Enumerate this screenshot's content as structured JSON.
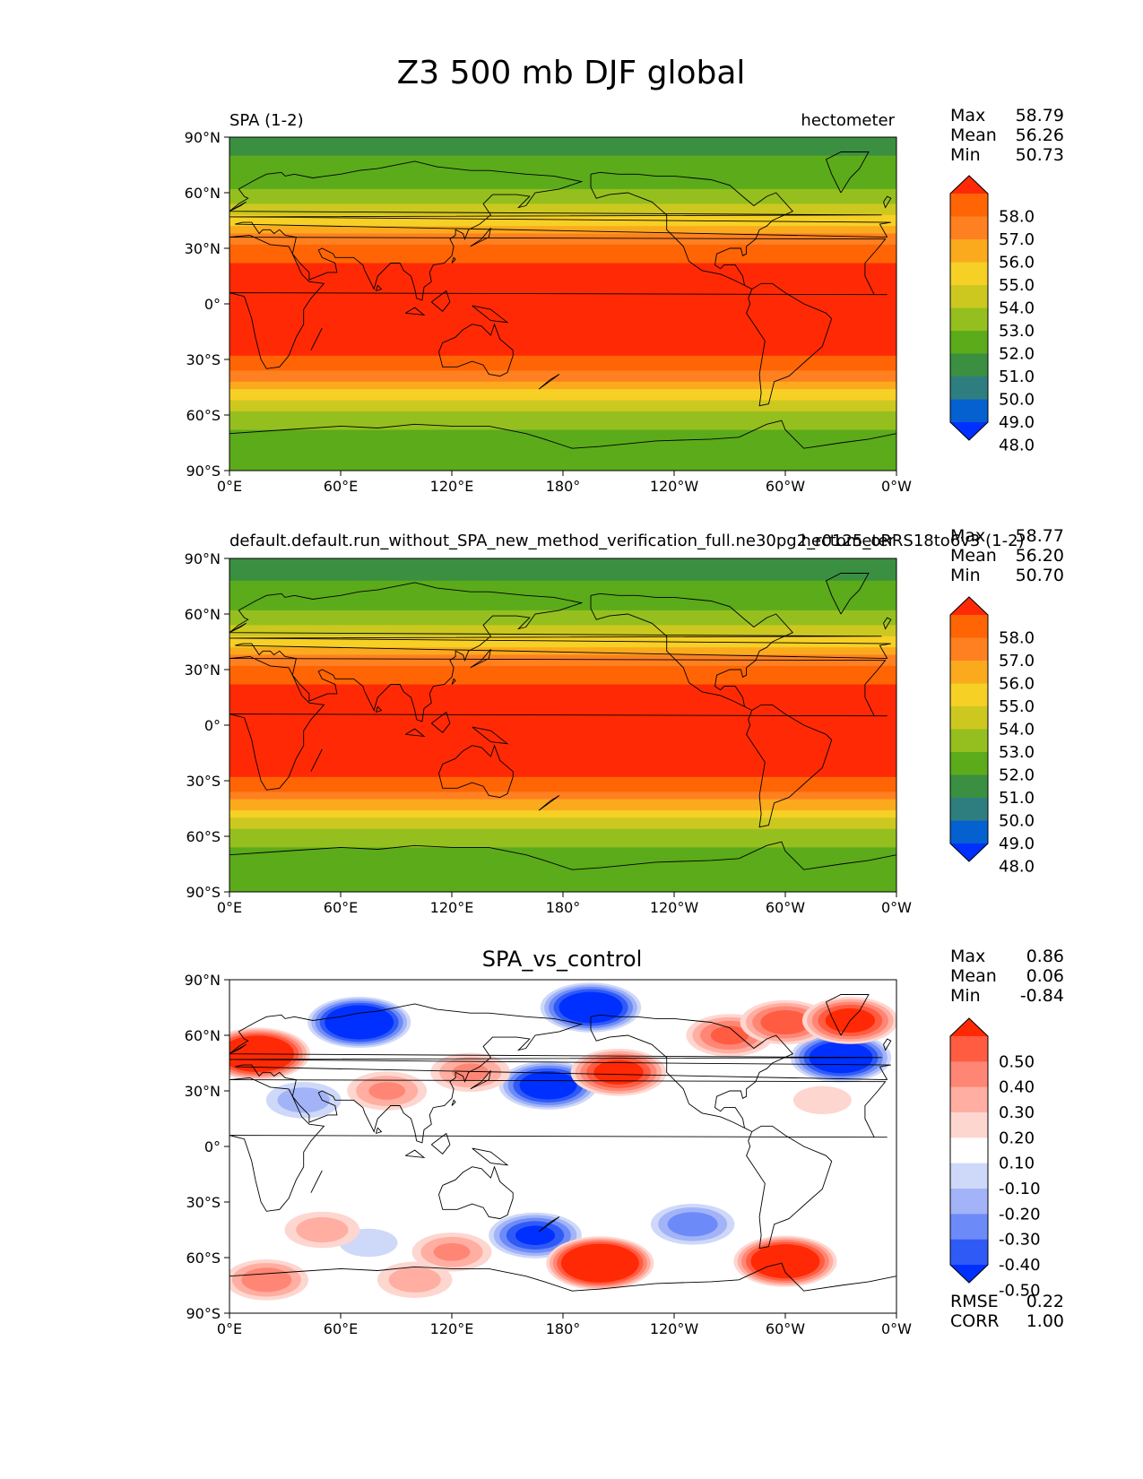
{
  "figure": {
    "title": "Z3 500 mb DJF global"
  },
  "x_ticks": [
    "0°E",
    "60°E",
    "120°E",
    "180°",
    "120°W",
    "60°W",
    "0°W"
  ],
  "y_ticks": [
    "90°N",
    "60°N",
    "30°N",
    "0°",
    "30°S",
    "60°S",
    "90°S"
  ],
  "colors": {
    "field": [
      "#0030ff",
      "#0560d0",
      "#2e7e80",
      "#3a9040",
      "#5bab1a",
      "#95bf1e",
      "#ccc820",
      "#f6d025",
      "#fbaa1d",
      "#ff8020",
      "#ff6505",
      "#ff2a05"
    ],
    "diff": [
      "#0030ff",
      "#2f5af6",
      "#6d8bf8",
      "#a2b3f8",
      "#ced8f9",
      "#ffffff",
      "#fed6d0",
      "#ffaea1",
      "#ff8674",
      "#ff5c42",
      "#ff2a05"
    ]
  },
  "chart_data": [
    {
      "type": "heatmap",
      "title_left": "SPA (1-2)",
      "title_right": "hectometer",
      "units": "hectometer",
      "xlim": [
        0,
        360
      ],
      "ylim": [
        -90,
        90
      ],
      "stats": {
        "labels": [
          "Max",
          "Mean",
          "Min"
        ],
        "values": [
          "58.79",
          "56.26",
          "50.73"
        ]
      },
      "colorbar": {
        "levels": [
          "58.0",
          "57.0",
          "56.0",
          "55.0",
          "54.0",
          "53.0",
          "52.0",
          "51.0",
          "50.0",
          "49.0",
          "48.0"
        ],
        "extend": "both"
      },
      "zonal_profile": {
        "lat": [
          -90,
          -80,
          -70,
          -60,
          -50,
          -40,
          -30,
          -20,
          -10,
          0,
          10,
          20,
          30,
          40,
          50,
          60,
          70,
          80,
          90
        ],
        "value": [
          51.4,
          51.5,
          51.7,
          52.7,
          54.2,
          56.3,
          57.8,
          58.5,
          58.7,
          58.7,
          58.6,
          58.3,
          57.2,
          55.5,
          53.7,
          52.2,
          51.4,
          51.0,
          50.9
        ]
      }
    },
    {
      "type": "heatmap",
      "title_left": "default.default.run_without_SPA_new_method_verification_full.ne30pg2_r0125_oRRS18to6v3 (1-2)",
      "title_right": "hectometer",
      "units": "hectometer",
      "xlim": [
        0,
        360
      ],
      "ylim": [
        -90,
        90
      ],
      "stats": {
        "labels": [
          "Max",
          "Mean",
          "Min"
        ],
        "values": [
          "58.77",
          "56.20",
          "50.70"
        ]
      },
      "colorbar": {
        "levels": [
          "58.0",
          "57.0",
          "56.0",
          "55.0",
          "54.0",
          "53.0",
          "52.0",
          "51.0",
          "50.0",
          "49.0",
          "48.0"
        ],
        "extend": "both"
      },
      "zonal_profile": {
        "lat": [
          -90,
          -80,
          -70,
          -60,
          -50,
          -40,
          -30,
          -20,
          -10,
          0,
          10,
          20,
          30,
          40,
          50,
          60,
          70,
          80,
          90
        ],
        "value": [
          51.3,
          51.4,
          51.6,
          52.4,
          54.0,
          56.2,
          57.8,
          58.5,
          58.7,
          58.7,
          58.6,
          58.3,
          57.2,
          55.5,
          53.7,
          52.1,
          51.3,
          50.9,
          50.8
        ]
      }
    },
    {
      "type": "heatmap",
      "title": "SPA_vs_control",
      "xlim": [
        0,
        360
      ],
      "ylim": [
        -90,
        90
      ],
      "stats": {
        "labels": [
          "Max",
          "Mean",
          "Min"
        ],
        "values": [
          "0.86",
          "0.06",
          "-0.84"
        ]
      },
      "colorbar": {
        "levels": [
          "0.50",
          "0.40",
          "0.30",
          "0.20",
          "0.10",
          "-0.10",
          "-0.20",
          "-0.30",
          "-0.40",
          "-0.50"
        ],
        "extend": "both"
      },
      "metrics": {
        "labels": [
          "RMSE",
          "CORR"
        ],
        "values": [
          "0.22",
          "1.00"
        ]
      },
      "anomalies": [
        {
          "lon": 70,
          "lat": 67,
          "value": -0.7
        },
        {
          "lon": 195,
          "lat": 75,
          "value": -0.65
        },
        {
          "lon": 330,
          "lat": 48,
          "value": -0.65
        },
        {
          "lon": 172,
          "lat": 33,
          "value": -0.6
        },
        {
          "lon": 165,
          "lat": -48,
          "value": -0.5
        },
        {
          "lon": 250,
          "lat": -42,
          "value": -0.35
        },
        {
          "lon": 40,
          "lat": 25,
          "value": -0.25
        },
        {
          "lon": 75,
          "lat": -52,
          "value": -0.15
        },
        {
          "lon": 15,
          "lat": 50,
          "value": 0.75
        },
        {
          "lon": 210,
          "lat": 40,
          "value": 0.55
        },
        {
          "lon": 270,
          "lat": 60,
          "value": 0.4
        },
        {
          "lon": 300,
          "lat": 67,
          "value": 0.45
        },
        {
          "lon": 335,
          "lat": 68,
          "value": 0.55
        },
        {
          "lon": 85,
          "lat": 30,
          "value": 0.3
        },
        {
          "lon": 130,
          "lat": 40,
          "value": 0.3
        },
        {
          "lon": 200,
          "lat": -63,
          "value": 0.8
        },
        {
          "lon": 300,
          "lat": -62,
          "value": 0.7
        },
        {
          "lon": 120,
          "lat": -57,
          "value": 0.3
        },
        {
          "lon": 50,
          "lat": -45,
          "value": 0.25
        },
        {
          "lon": 20,
          "lat": -72,
          "value": 0.35
        },
        {
          "lon": 100,
          "lat": -72,
          "value": 0.25
        },
        {
          "lon": 320,
          "lat": 25,
          "value": 0.15
        }
      ]
    }
  ]
}
